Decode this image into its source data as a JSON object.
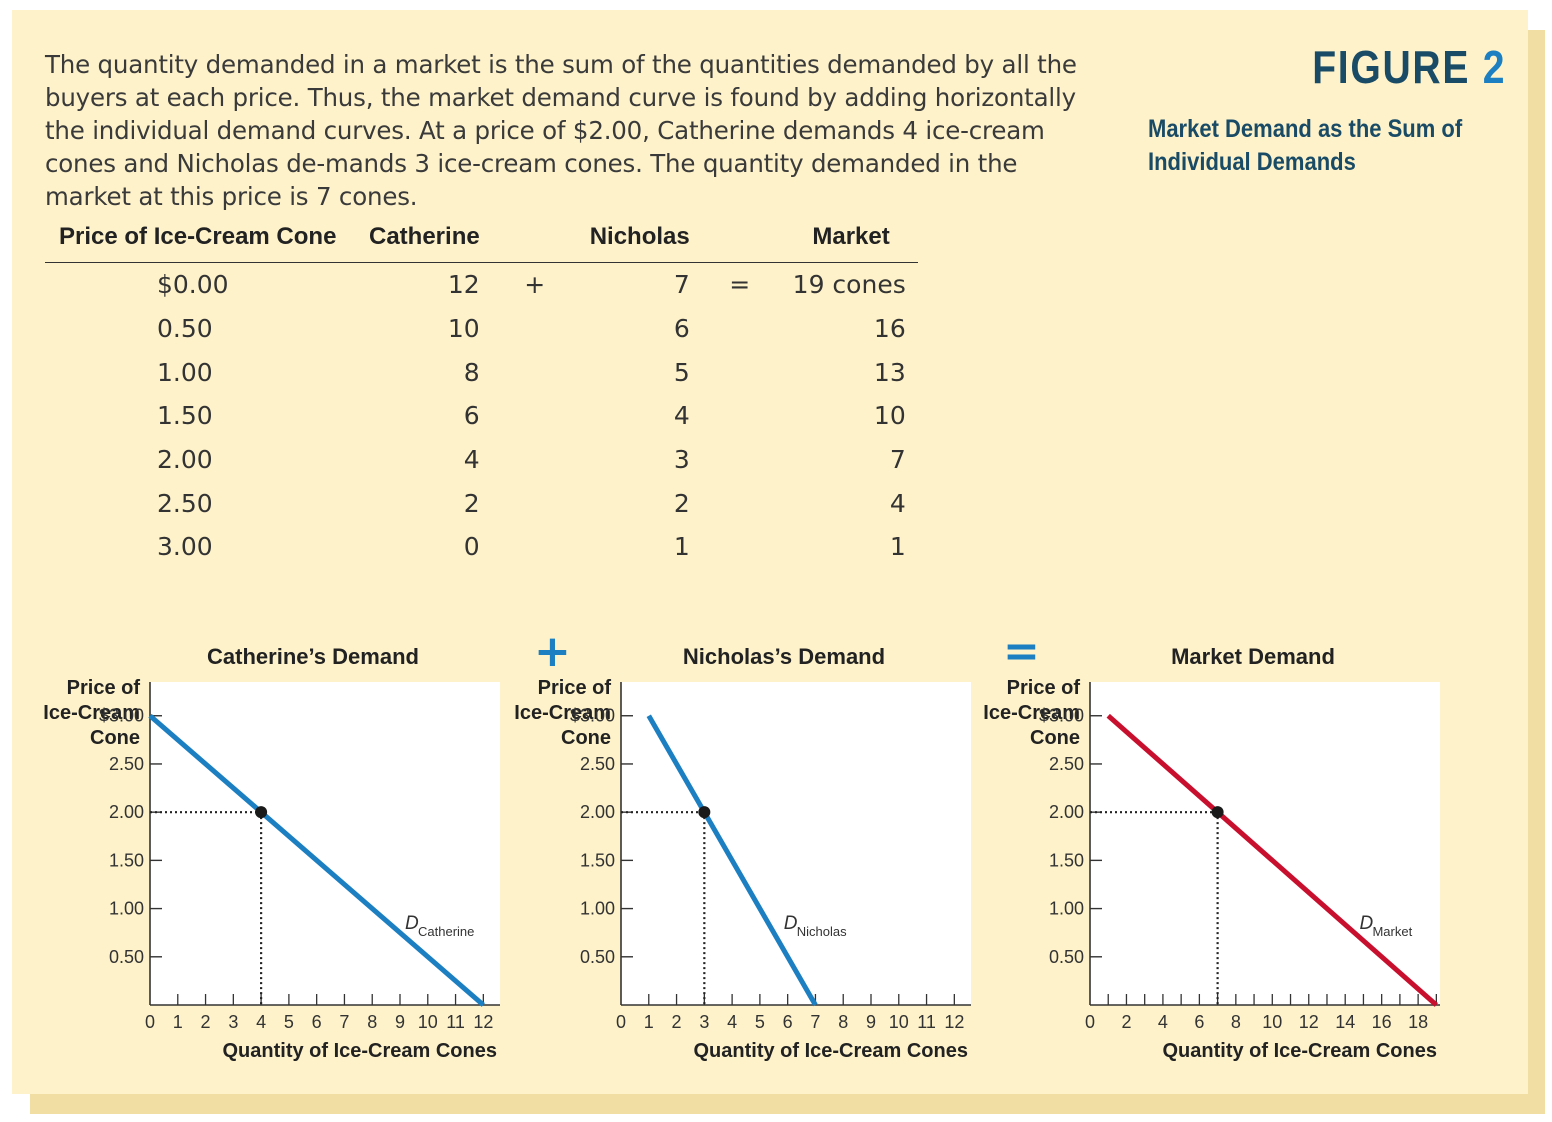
{
  "intro_text": "The quantity demanded in a market is the sum of the quantities demanded by all the buyers at each price. Thus, the market demand curve is found by adding horizontally the individual demand curves. At a price of $2.00, Catherine demands 4 ice-cream cones and Nicholas de-mands 3 ice-cream cones. The quantity demanded in the market at this price is 7 cones.",
  "figure_label": "FIGURE",
  "figure_number": "2",
  "figure_caption": "Market Demand as the Sum of Individual Demands",
  "table": {
    "headers": [
      "Price of Ice-Cream Cone",
      "Catherine",
      "Nicholas",
      "Market"
    ],
    "plus": "+",
    "equals": "=",
    "rows": [
      {
        "price": "$0.00",
        "catherine": "12",
        "nicholas": "7",
        "market": "19 cones"
      },
      {
        "price": "0.50",
        "catherine": "10",
        "nicholas": "6",
        "market": "16"
      },
      {
        "price": "1.00",
        "catherine": "8",
        "nicholas": "5",
        "market": "13"
      },
      {
        "price": "1.50",
        "catherine": "6",
        "nicholas": "4",
        "market": "10"
      },
      {
        "price": "2.00",
        "catherine": "4",
        "nicholas": "3",
        "market": "7"
      },
      {
        "price": "2.50",
        "catherine": "2",
        "nicholas": "2",
        "market": "4"
      },
      {
        "price": "3.00",
        "catherine": "0",
        "nicholas": "1",
        "market": "1"
      }
    ]
  },
  "operators": {
    "plus": "+",
    "equals": "="
  },
  "colors": {
    "accent": "#1b7fc1",
    "dark_blue": "#1a4b66",
    "market_red": "#c8102e",
    "panel": "#fdf2c9"
  },
  "chart_data": [
    {
      "type": "line",
      "title": "Catherine’s Demand",
      "ylabel": [
        "Price of",
        "Ice-Cream",
        "Cone"
      ],
      "xlabel": "Quantity of Ice-Cream Cones",
      "yticks": [
        "$3.00",
        "2.50",
        "2.00",
        "1.50",
        "1.00",
        "0.50"
      ],
      "ytick_values": [
        3.0,
        2.5,
        2.0,
        1.5,
        1.0,
        0.5
      ],
      "xticks": [
        "0",
        "1",
        "2",
        "3",
        "4",
        "5",
        "6",
        "7",
        "8",
        "9",
        "10",
        "11",
        "12"
      ],
      "xtick_values": [
        0,
        1,
        2,
        3,
        4,
        5,
        6,
        7,
        8,
        9,
        10,
        11,
        12
      ],
      "xlim": [
        0,
        12.6
      ],
      "ylim": [
        0,
        3.35
      ],
      "series": [
        {
          "name": "D",
          "subscript": "Catherine",
          "color": "#1b7fc1",
          "x": [
            0,
            12
          ],
          "y": [
            3.0,
            0.0
          ]
        }
      ],
      "highlight": {
        "x": 4,
        "y": 2.0
      }
    },
    {
      "type": "line",
      "title": "Nicholas’s Demand",
      "ylabel": [
        "Price of",
        "Ice-Cream",
        "Cone"
      ],
      "xlabel": "Quantity of Ice-Cream Cones",
      "yticks": [
        "$3.00",
        "2.50",
        "2.00",
        "1.50",
        "1.00",
        "0.50"
      ],
      "ytick_values": [
        3.0,
        2.5,
        2.0,
        1.5,
        1.0,
        0.5
      ],
      "xticks": [
        "0",
        "1",
        "2",
        "3",
        "4",
        "5",
        "6",
        "7",
        "8",
        "9",
        "10",
        "11",
        "12"
      ],
      "xtick_values": [
        0,
        1,
        2,
        3,
        4,
        5,
        6,
        7,
        8,
        9,
        10,
        11,
        12
      ],
      "xlim": [
        0,
        12.6
      ],
      "ylim": [
        0,
        3.35
      ],
      "series": [
        {
          "name": "D",
          "subscript": "Nicholas",
          "color": "#1b7fc1",
          "x": [
            1,
            7
          ],
          "y": [
            3.0,
            0.0
          ]
        }
      ],
      "highlight": {
        "x": 3,
        "y": 2.0
      }
    },
    {
      "type": "line",
      "title": "Market Demand",
      "ylabel": [
        "Price of",
        "Ice-Cream",
        "Cone"
      ],
      "xlabel": "Quantity of Ice-Cream Cones",
      "yticks": [
        "$3.00",
        "2.50",
        "2.00",
        "1.50",
        "1.00",
        "0.50"
      ],
      "ytick_values": [
        3.0,
        2.5,
        2.0,
        1.5,
        1.0,
        0.5
      ],
      "xticks": [
        "0",
        "2",
        "4",
        "6",
        "8",
        "10",
        "12",
        "14",
        "16",
        "18"
      ],
      "xtick_values": [
        0,
        2,
        4,
        6,
        8,
        10,
        12,
        14,
        16,
        18
      ],
      "xminor": true,
      "xlim": [
        0,
        19.2
      ],
      "ylim": [
        0,
        3.35
      ],
      "series": [
        {
          "name": "D",
          "subscript": "Market",
          "color": "#c8102e",
          "x": [
            1,
            19
          ],
          "y": [
            3.0,
            0.0
          ]
        }
      ],
      "highlight": {
        "x": 7,
        "y": 2.0
      }
    }
  ]
}
